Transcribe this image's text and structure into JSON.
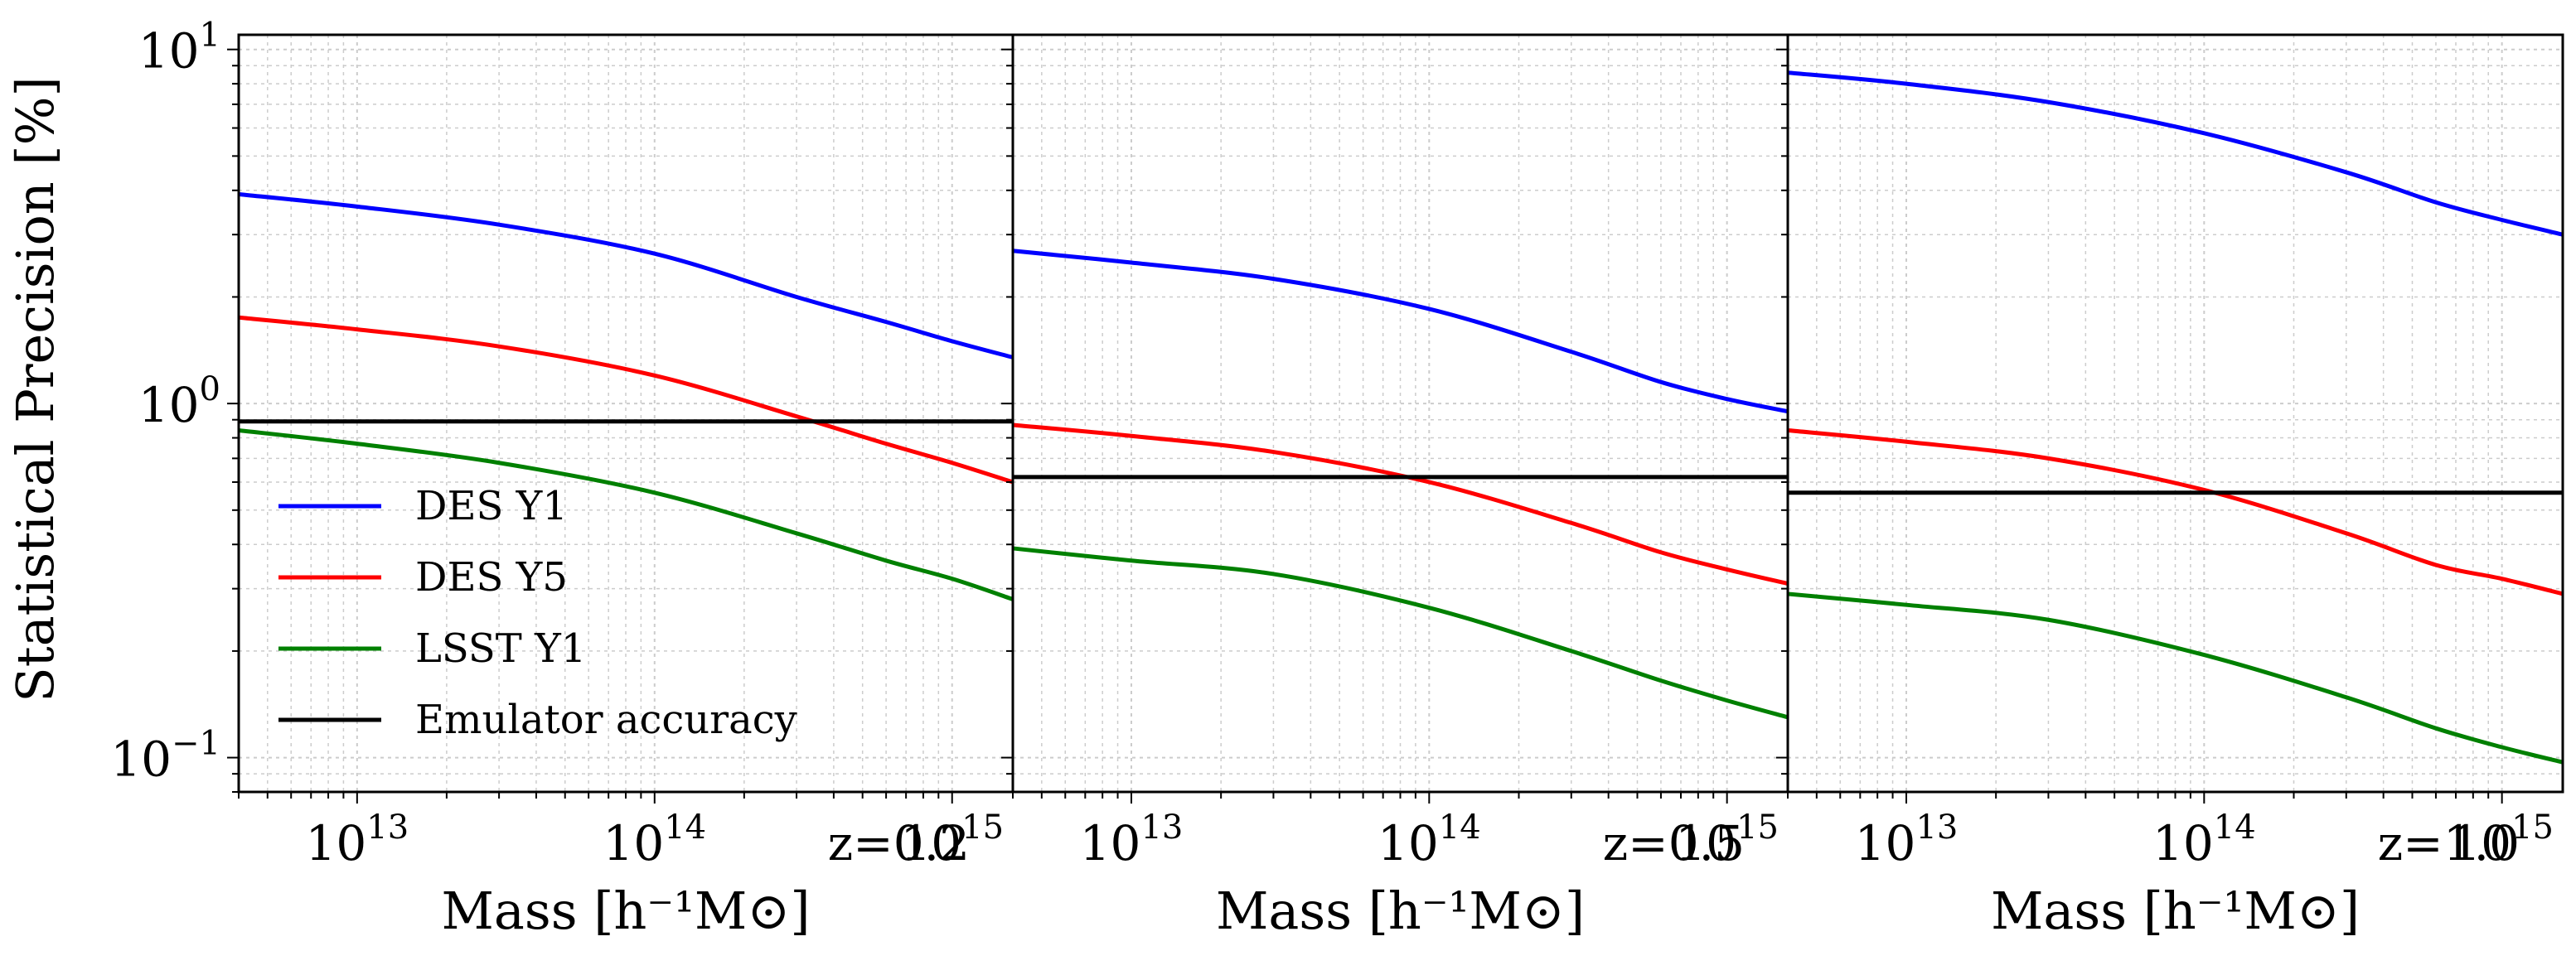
{
  "figure": {
    "ylabel": "Statistical Precision [%]",
    "xlabel": "Mass [h⁻¹M⊙]"
  },
  "colors": {
    "DES Y1": "#0000ff",
    "DES Y5": "#ff0000",
    "LSST Y1": "#008000",
    "Emulator accuracy": "#000000"
  },
  "legend": {
    "placement": "lower-left of first panel",
    "entries": [
      {
        "label": "DES Y1",
        "color": "#0000ff"
      },
      {
        "label": "DES Y5",
        "color": "#ff0000"
      },
      {
        "label": "LSST Y1",
        "color": "#008000"
      },
      {
        "label": "Emulator accuracy",
        "color": "#000000"
      }
    ]
  },
  "chart_data": [
    {
      "type": "line",
      "panel_label": "z=0.2",
      "xscale": "log",
      "yscale": "log",
      "xlim": [
        4000000000000.0,
        1600000000000000.0
      ],
      "ylim": [
        0.08,
        11
      ],
      "grid": true,
      "xticks": [
        {
          "base": "10",
          "exp": "13",
          "value": 10000000000000.0
        },
        {
          "base": "10",
          "exp": "14",
          "value": 100000000000000.0
        },
        {
          "base": "10",
          "exp": "15",
          "value": 1000000000000000.0
        }
      ],
      "yticks": [
        {
          "base": "10",
          "exp": "−1",
          "value": 0.1
        },
        {
          "base": "10",
          "exp": "0",
          "value": 1
        },
        {
          "base": "10",
          "exp": "1",
          "value": 10
        }
      ],
      "x": [
        4000000000000.0,
        10000000000000.0,
        30000000000000.0,
        100000000000000.0,
        300000000000000.0,
        600000000000000.0,
        1000000000000000.0,
        1600000000000000.0
      ],
      "series": [
        {
          "name": "DES Y1",
          "values": [
            3.9,
            3.6,
            3.2,
            2.65,
            2.0,
            1.7,
            1.5,
            1.35
          ]
        },
        {
          "name": "DES Y5",
          "values": [
            1.75,
            1.62,
            1.45,
            1.2,
            0.92,
            0.77,
            0.68,
            0.6
          ]
        },
        {
          "name": "LSST Y1",
          "values": [
            0.84,
            0.77,
            0.68,
            0.56,
            0.43,
            0.36,
            0.32,
            0.28
          ]
        },
        {
          "name": "Emulator accuracy",
          "values": [
            0.89,
            0.89,
            0.89,
            0.89,
            0.89,
            0.89,
            0.89,
            0.89
          ]
        }
      ]
    },
    {
      "type": "line",
      "panel_label": "z=0.5",
      "xscale": "log",
      "yscale": "log",
      "xlim": [
        4000000000000.0,
        1600000000000000.0
      ],
      "ylim": [
        0.08,
        11
      ],
      "grid": true,
      "xticks": [
        {
          "base": "10",
          "exp": "13",
          "value": 10000000000000.0
        },
        {
          "base": "10",
          "exp": "14",
          "value": 100000000000000.0
        },
        {
          "base": "10",
          "exp": "15",
          "value": 1000000000000000.0
        }
      ],
      "yticks": [],
      "x": [
        4000000000000.0,
        10000000000000.0,
        30000000000000.0,
        100000000000000.0,
        300000000000000.0,
        600000000000000.0,
        1000000000000000.0,
        1600000000000000.0
      ],
      "series": [
        {
          "name": "DES Y1",
          "values": [
            2.7,
            2.5,
            2.25,
            1.85,
            1.4,
            1.15,
            1.03,
            0.95
          ]
        },
        {
          "name": "DES Y5",
          "values": [
            0.87,
            0.81,
            0.73,
            0.6,
            0.46,
            0.38,
            0.34,
            0.31
          ]
        },
        {
          "name": "LSST Y1",
          "values": [
            0.39,
            0.36,
            0.33,
            0.265,
            0.2,
            0.165,
            0.145,
            0.13
          ]
        },
        {
          "name": "Emulator accuracy",
          "values": [
            0.62,
            0.62,
            0.62,
            0.62,
            0.62,
            0.62,
            0.62,
            0.62
          ]
        }
      ]
    },
    {
      "type": "line",
      "panel_label": "z=1.0",
      "xscale": "log",
      "yscale": "log",
      "xlim": [
        4000000000000.0,
        1600000000000000.0
      ],
      "ylim": [
        0.08,
        11
      ],
      "grid": true,
      "xticks": [
        {
          "base": "10",
          "exp": "13",
          "value": 10000000000000.0
        },
        {
          "base": "10",
          "exp": "14",
          "value": 100000000000000.0
        },
        {
          "base": "10",
          "exp": "15",
          "value": 1000000000000000.0
        }
      ],
      "yticks": [],
      "x": [
        4000000000000.0,
        10000000000000.0,
        30000000000000.0,
        100000000000000.0,
        300000000000000.0,
        600000000000000.0,
        1000000000000000.0,
        1600000000000000.0
      ],
      "series": [
        {
          "name": "DES Y1",
          "values": [
            8.6,
            8.0,
            7.1,
            5.8,
            4.5,
            3.7,
            3.3,
            3.0
          ]
        },
        {
          "name": "DES Y5",
          "values": [
            0.84,
            0.78,
            0.7,
            0.57,
            0.43,
            0.35,
            0.32,
            0.29
          ]
        },
        {
          "name": "LSST Y1",
          "values": [
            0.29,
            0.27,
            0.245,
            0.195,
            0.148,
            0.121,
            0.107,
            0.097
          ]
        },
        {
          "name": "Emulator accuracy",
          "values": [
            0.56,
            0.56,
            0.56,
            0.56,
            0.56,
            0.56,
            0.56,
            0.56
          ]
        }
      ]
    }
  ]
}
